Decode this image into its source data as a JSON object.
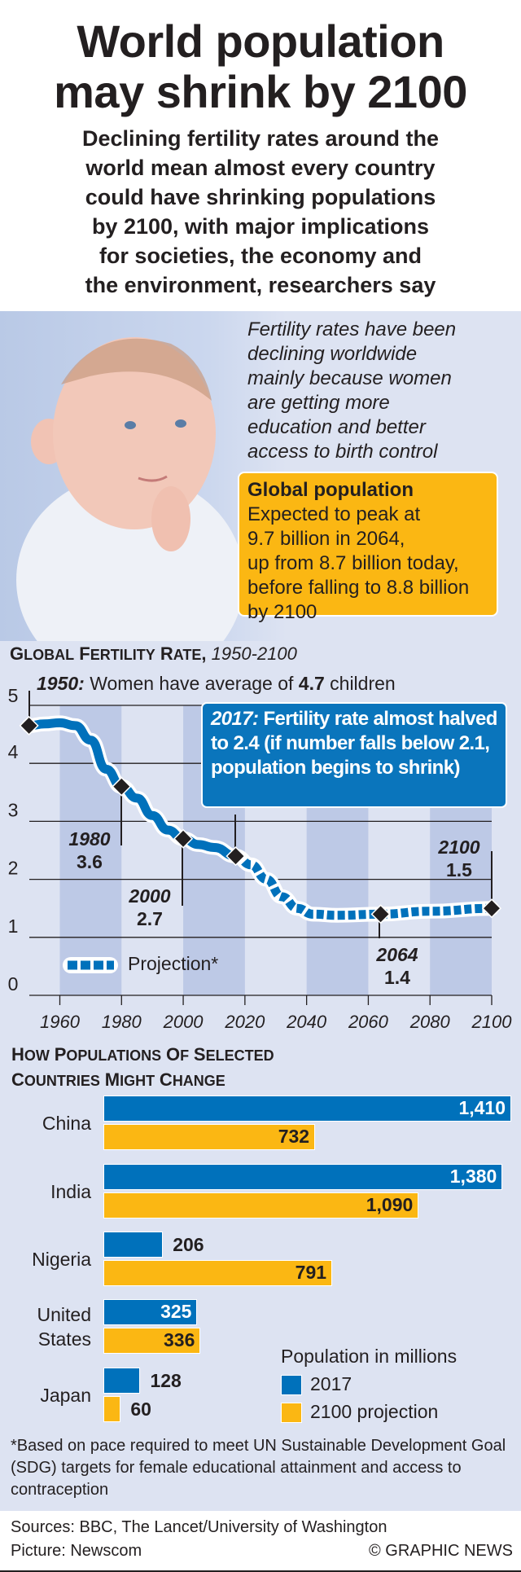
{
  "header": {
    "title_lines": [
      "World population",
      "may shrink by 2100"
    ],
    "subtitle_lines": [
      "Declining fertility rates around the",
      "world mean almost every country",
      "could have shrinking populations",
      "by 2100, with major implications",
      "for societies, the economy and",
      "the environment, researchers say"
    ]
  },
  "intro": {
    "lines": [
      "Fertility rates have been",
      "declining worldwide",
      "mainly because women",
      "are getting more",
      "education and better",
      "access to birth control"
    ]
  },
  "infobox": {
    "heading": "Global population",
    "lines": [
      "Expected to peak at",
      "9.7 billion in 2064,",
      "up from 8.7 billion today,",
      "before falling to 8.8 billion",
      "by 2100"
    ],
    "color": "#fbb713"
  },
  "chart_data": [
    {
      "type": "line",
      "title": "Global Fertility Rate",
      "title_range": "1950-2100",
      "xlim": [
        1950,
        2100
      ],
      "ylim": [
        0,
        5
      ],
      "x_ticks": [
        "1960",
        "1980",
        "2000",
        "2020",
        "2040",
        "2060",
        "2080",
        "2100"
      ],
      "y_ticks": [
        "0",
        "1",
        "2",
        "3",
        "4",
        "5"
      ],
      "grid": true,
      "series_color": "#0071bb",
      "points": [
        [
          1950,
          4.65
        ],
        [
          1955,
          4.68
        ],
        [
          1960,
          4.7
        ],
        [
          1965,
          4.65
        ],
        [
          1970,
          4.4
        ],
        [
          1975,
          3.9
        ],
        [
          1980,
          3.6
        ],
        [
          1985,
          3.4
        ],
        [
          1990,
          3.1
        ],
        [
          1995,
          2.85
        ],
        [
          2000,
          2.7
        ],
        [
          2005,
          2.6
        ],
        [
          2010,
          2.55
        ],
        [
          2017,
          2.4
        ],
        [
          2022,
          2.25
        ],
        [
          2027,
          2.0
        ],
        [
          2032,
          1.7
        ],
        [
          2037,
          1.5
        ],
        [
          2042,
          1.4
        ],
        [
          2050,
          1.38
        ],
        [
          2064,
          1.4
        ],
        [
          2080,
          1.45
        ],
        [
          2100,
          1.5
        ]
      ],
      "projection_from": 2017,
      "legend": {
        "projection": "Projection*"
      },
      "annotations": {
        "a1950": {
          "year": "1950:",
          "text": " Women have average of ",
          "value": "4.7",
          "suffix": " children"
        },
        "a1980": {
          "year": "1980",
          "value": "3.6"
        },
        "a2000": {
          "year": "2000",
          "value": "2.7"
        },
        "a2017": {
          "year": "2017:",
          "text": " Fertility rate almost halved to 2.4 (if number falls below 2.1, population begins to shrink)"
        },
        "a2064": {
          "year": "2064",
          "value": "1.4"
        },
        "a2100": {
          "year": "2100",
          "value": "1.5"
        }
      }
    },
    {
      "type": "bar",
      "title_lines": [
        "How Populations of Selected",
        "Countries Might Change"
      ],
      "categories": [
        "China",
        "India",
        "Nigeria",
        "United States",
        "Japan"
      ],
      "category_lines": [
        [
          "China"
        ],
        [
          "India"
        ],
        [
          "Nigeria"
        ],
        [
          "United",
          "States"
        ],
        [
          "Japan"
        ]
      ],
      "series": [
        {
          "name": "2017",
          "values": [
            1410,
            1380,
            206,
            325,
            128
          ],
          "labels": [
            "1,410",
            "1,380",
            "206",
            "325",
            "128"
          ],
          "color": "#0071bb"
        },
        {
          "name": "2100 projection",
          "values": [
            732,
            1090,
            791,
            336,
            60
          ],
          "labels": [
            "732",
            "1,090",
            "791",
            "336",
            "60"
          ],
          "color": "#fbb713"
        }
      ],
      "legend_title": "Population in millions"
    }
  ],
  "footnote": "*Based on pace required to meet UN Sustainable Development Goal (SDG) targets for female educational attainment and access to contraception",
  "footer": {
    "sources": "Sources: BBC, The Lancet/University of Washington",
    "picture": "Picture: Newscom",
    "credit": "© GRAPHIC NEWS"
  }
}
